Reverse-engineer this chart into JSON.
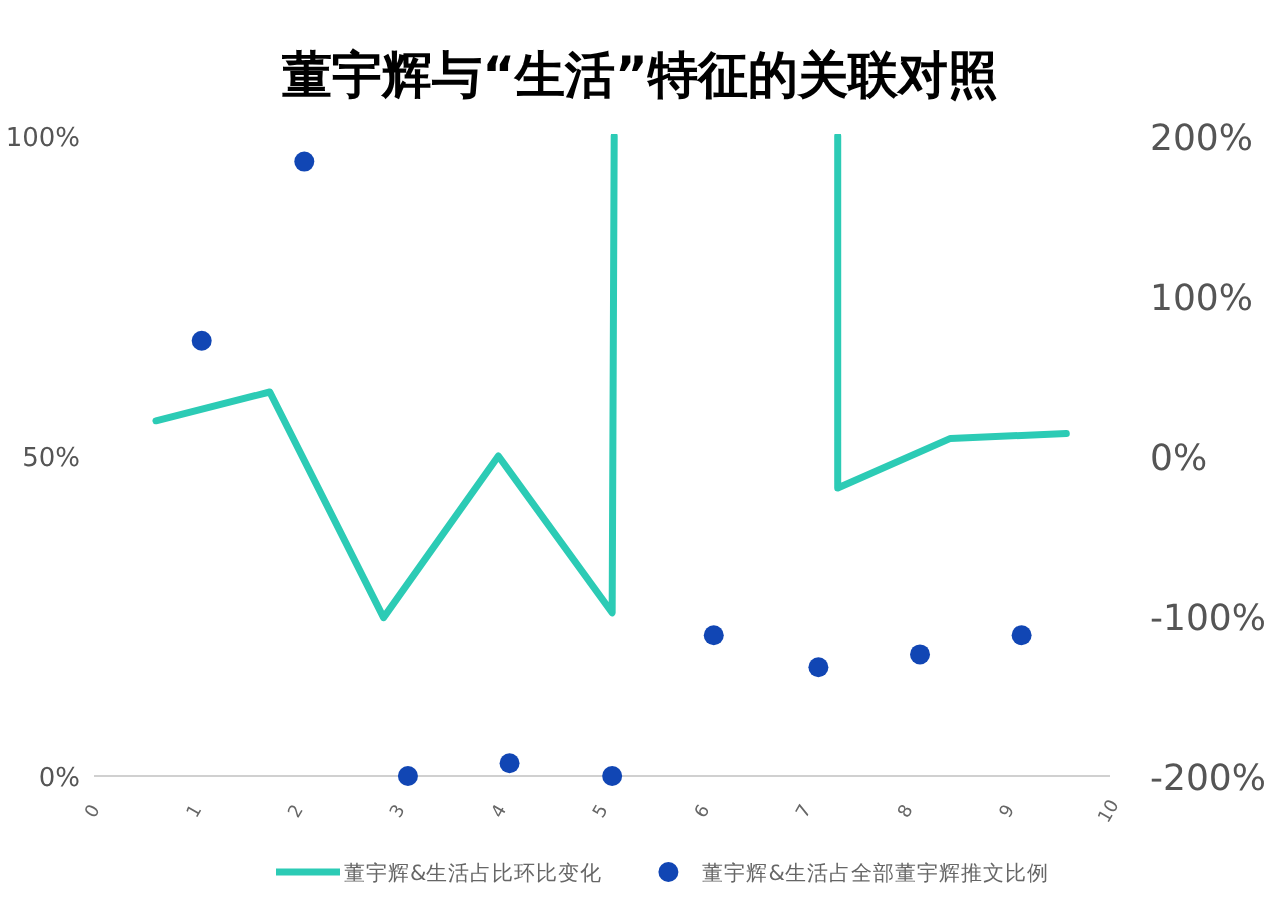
{
  "chart_data": {
    "type": "line",
    "title": "董宇辉与“生活”特征的关联对照",
    "xlim": [
      0,
      10
    ],
    "xticks": [
      0,
      1,
      2,
      3,
      4,
      5,
      6,
      7,
      8,
      9,
      10
    ],
    "ylim": [
      0,
      100
    ],
    "yticks": [
      {
        "value": 0,
        "label": "0%"
      },
      {
        "value": 50,
        "label": "50%"
      },
      {
        "value": 100,
        "label": "100%"
      }
    ],
    "y2lim": [
      -200,
      200
    ],
    "y2ticks": [
      {
        "value": -200,
        "label": "-200%"
      },
      {
        "value": -100,
        "label": "-100%"
      },
      {
        "value": 0,
        "label": "0%"
      },
      {
        "value": 100,
        "label": "100%"
      },
      {
        "value": 200,
        "label": "200%"
      }
    ],
    "legend": "bottom",
    "series": [
      {
        "name": "董宇辉&生活占比环比变化",
        "axis": "y2",
        "color": "#2ccbb5",
        "x": [
          0.61,
          1.73,
          2.85,
          3.98,
          5.1,
          5.12,
          6.2,
          7.32,
          7.32,
          8.43,
          9.57
        ],
        "values": [
          22,
          40,
          -101,
          0,
          -98,
          200,
          null,
          200,
          -20,
          11,
          14
        ]
      },
      {
        "name": "董宇辉&生活占全部董宇辉推文比例",
        "type": "scatter",
        "color": "#1146b4",
        "x": [
          1.06,
          2.07,
          3.09,
          4.09,
          5.1,
          6.1,
          7.13,
          8.13,
          9.13
        ],
        "values": [
          68,
          96,
          0,
          2,
          0,
          22,
          17,
          19,
          22
        ]
      }
    ]
  }
}
